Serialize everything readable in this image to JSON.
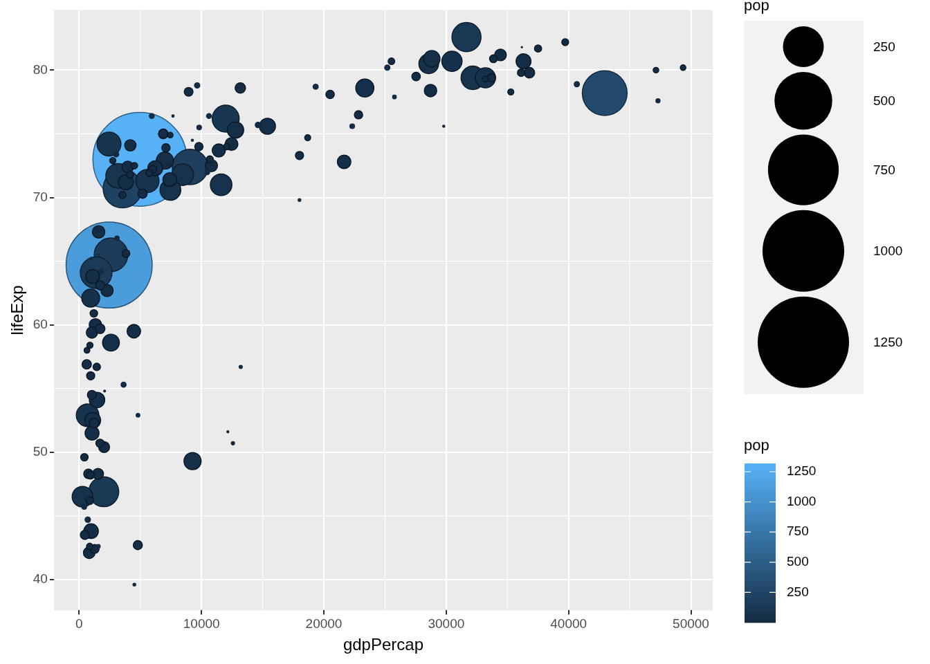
{
  "chart_data": {
    "type": "bubble",
    "xlabel": "gdpPercap",
    "ylabel": "lifeExp",
    "legend_title": "pop",
    "clabel": "pop",
    "xlim": [
      -2060,
      51780
    ],
    "ylim": [
      37.58,
      84.73
    ],
    "xticks": [
      0,
      10000,
      20000,
      30000,
      40000,
      50000
    ],
    "yticks": [
      40,
      50,
      60,
      70,
      80
    ],
    "grid": true,
    "size_legend": [
      250,
      500,
      750,
      1000,
      1250
    ],
    "clim": [
      0.2,
      1318.7
    ],
    "cticks": [
      250,
      500,
      750,
      1000,
      1250
    ],
    "x": [
      4959,
      2452,
      42952,
      3541,
      9066,
      2606,
      1391,
      2014,
      31656,
      11978,
      3190,
      2442,
      32170,
      5581,
      691,
      8458,
      11606,
      7458,
      278,
      30470,
      33203,
      28570,
      23348,
      944,
      7007,
      9270,
      28821,
      12779,
      2602,
      15390,
      1107,
      1463,
      3820,
      36319,
      6223,
      975,
      1056,
      1091,
      7409,
      21655,
      4471,
      11416,
      12452,
      1593,
      28718,
      1328,
      10808,
      2281,
      34435,
      3970,
      824,
      4185,
      1045,
      1545,
      2042,
      36798,
      13172,
      1217,
      1714,
      6873,
      759,
      620,
      5186,
      4797,
      470,
      1712,
      1043,
      1271,
      8948,
      27538,
      20510,
      33693,
      7093,
      22833,
      1704,
      9787,
      18009,
      943,
      6025,
      3822,
      926,
      33860,
      863,
      1202,
      430,
      36126,
      1441,
      37506,
      3548,
      10681,
      39725,
      5728,
      4173,
      25523,
      863,
      4519,
      12058,
      883,
      2749,
      35278,
      18678,
      33207,
      641,
      49357,
      7446,
      47143,
      14619,
      706,
      40676,
      25185,
      9645,
      3025,
      19329,
      10461,
      3633,
      5937,
      10611,
      1803,
      9809,
      22316,
      415,
      3096,
      7321,
      47307,
      4811,
      1569,
      25768,
      753,
      12570,
      579,
      13206,
      10957,
      4513,
      18009,
      7670,
      986,
      29796,
      9254,
      12154,
      2082,
      36181,
      1598
    ],
    "values": [
      73.0,
      64.7,
      78.2,
      70.7,
      72.4,
      65.5,
      64.1,
      46.9,
      82.6,
      76.2,
      71.7,
      74.2,
      79.4,
      71.3,
      52.9,
      71.8,
      71.0,
      70.6,
      46.5,
      80.7,
      79.4,
      80.5,
      78.6,
      62.1,
      72.9,
      49.3,
      80.9,
      75.3,
      58.6,
      75.6,
      52.5,
      54.1,
      71.2,
      80.7,
      72.3,
      43.8,
      51.5,
      63.8,
      71.4,
      72.8,
      59.5,
      73.7,
      74.2,
      67.3,
      78.4,
      60.0,
      72.5,
      62.7,
      81.2,
      72.4,
      42.1,
      74.1,
      59.4,
      48.3,
      50.4,
      79.8,
      78.6,
      52.3,
      59.7,
      75.0,
      48.3,
      56.9,
      70.3,
      42.7,
      43.5,
      63.1,
      54.5,
      42.4,
      78.3,
      79.5,
      78.1,
      79.4,
      73.9,
      76.5,
      50.7,
      74.0,
      73.3,
      56.0,
      72.2,
      65.6,
      48.2,
      80.9,
      46.2,
      60.9,
      49.6,
      79.8,
      56.7,
      81.7,
      70.2,
      73.0,
      82.2,
      71.9,
      71.8,
      80.7,
      42.6,
      72.5,
      74.0,
      58.4,
      72.9,
      78.3,
      74.7,
      79.3,
      58.0,
      80.2,
      74.9,
      80.0,
      75.7,
      44.7,
      78.9,
      80.2,
      78.8,
      73.4,
      78.7,
      72.0,
      55.3,
      76.4,
      76.4,
      64.2,
      75.5,
      75.6,
      45.7,
      66.8,
      72.6,
      77.6,
      52.9,
      42.6,
      77.9,
      59.4,
      50.7,
      46.4,
      56.7,
      72.8,
      39.6,
      69.8,
      76.4,
      65.2,
      75.6,
      74.5,
      51.6,
      54.8,
      81.8,
      65.5
    ],
    "sizes": [
      1318.7,
      1110.4,
      301.1,
      223.5,
      190.0,
      169.3,
      150.4,
      135.0,
      127.5,
      108.7,
      91.1,
      85.3,
      82.4,
      80.3,
      76.5,
      71.2,
      69.5,
      65.1,
      64.6,
      61.1,
      60.8,
      58.1,
      49.0,
      47.8,
      44.2,
      44.0,
      40.4,
      40.3,
      42.3,
      38.5,
      38.1,
      35.6,
      33.8,
      33.4,
      33.3,
      31.9,
      29.2,
      28.9,
      28.7,
      27.6,
      27.5,
      26.1,
      24.8,
      23.3,
      23.2,
      22.9,
      22.3,
      22.2,
      20.4,
      20.4,
      20.0,
      19.3,
      19.2,
      18.0,
      17.7,
      16.6,
      16.3,
      14.3,
      14.1,
      13.8,
      13.3,
      12.9,
      12.6,
      12.4,
      12.3,
      12.3,
      12.0,
      11.7,
      11.4,
      10.7,
      10.6,
      10.4,
      10.3,
      10.2,
      10.2,
      10.2,
      10.0,
      9.9,
      9.3,
      9.1,
      9.1,
      9.0,
      8.9,
      8.5,
      8.4,
      8.2,
      8.1,
      7.6,
      7.5,
      7.3,
      7.0,
      6.9,
      6.7,
      6.4,
      6.1,
      6.1,
      6.0,
      5.7,
      5.7,
      5.5,
      5.4,
      5.2,
      4.9,
      4.6,
      4.6,
      4.6,
      4.5,
      4.4,
      4.1,
      4.1,
      4.1,
      4.0,
      3.9,
      3.9,
      3.8,
      3.6,
      3.4,
      3.3,
      3.2,
      3.2,
      3.2,
      2.9,
      2.8,
      2.5,
      2.1,
      2.0,
      2.0,
      1.7,
      1.6,
      1.5,
      1.5,
      1.3,
      1.1,
      1.1,
      0.8,
      0.7,
      0.7,
      0.7,
      0.6,
      0.5,
      0.3,
      0.2
    ],
    "cvalues": [
      1318.7,
      1110.4,
      301.1,
      223.5,
      190.0,
      169.3,
      150.4,
      135.0,
      127.5,
      108.7,
      91.1,
      85.3,
      82.4,
      80.3,
      76.5,
      71.2,
      69.5,
      65.1,
      64.6,
      61.1,
      60.8,
      58.1,
      49.0,
      47.8,
      44.2,
      44.0,
      40.4,
      40.3,
      42.3,
      38.5,
      38.1,
      35.6,
      33.8,
      33.4,
      33.3,
      31.9,
      29.2,
      28.9,
      28.7,
      27.6,
      27.5,
      26.1,
      24.8,
      23.3,
      23.2,
      22.9,
      22.3,
      22.2,
      20.4,
      20.4,
      20.0,
      19.3,
      19.2,
      18.0,
      17.7,
      16.6,
      16.3,
      14.3,
      14.1,
      13.8,
      13.3,
      12.9,
      12.6,
      12.4,
      12.3,
      12.3,
      12.0,
      11.7,
      11.4,
      10.7,
      10.6,
      10.4,
      10.3,
      10.2,
      10.2,
      10.2,
      10.0,
      9.9,
      9.3,
      9.1,
      9.1,
      9.0,
      8.9,
      8.5,
      8.4,
      8.2,
      8.1,
      7.6,
      7.5,
      7.3,
      7.0,
      6.9,
      6.7,
      6.4,
      6.1,
      6.1,
      6.0,
      5.7,
      5.7,
      5.5,
      5.4,
      5.2,
      4.9,
      4.6,
      4.6,
      4.6,
      4.5,
      4.4,
      4.1,
      4.1,
      4.1,
      4.0,
      3.9,
      3.9,
      3.8,
      3.6,
      3.4,
      3.3,
      3.2,
      3.2,
      3.2,
      2.9,
      2.8,
      2.5,
      2.1,
      2.0,
      2.0,
      1.7,
      1.6,
      1.5,
      1.5,
      1.3,
      1.1,
      1.1,
      0.8,
      0.7,
      0.7,
      0.7,
      0.6,
      0.5,
      0.3,
      0.2
    ]
  }
}
